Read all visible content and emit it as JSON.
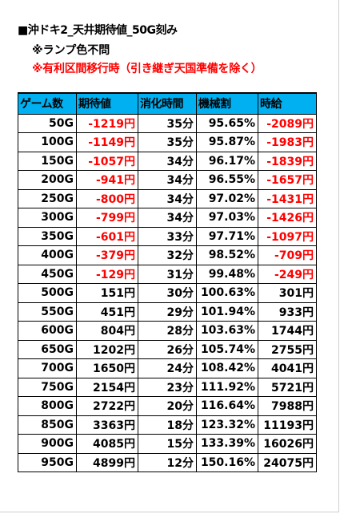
{
  "header": {
    "title": "■沖ドキ2_天井期待値_50G刻み",
    "note_lamp": "※ランプ色不問",
    "note_condition": "※有利区間移行時（引き継ぎ天国準備を除く）"
  },
  "colors": {
    "header_bg": "#00b0f0",
    "negative": "#ff0000",
    "text": "#000000"
  },
  "table": {
    "columns": [
      "ゲーム数",
      "期待値",
      "消化時間",
      "機械割",
      "時給"
    ],
    "rows": [
      [
        "50G",
        "-1219円",
        "35分",
        "95.65%",
        "-2089円"
      ],
      [
        "100G",
        "-1149円",
        "35分",
        "95.87%",
        "-1983円"
      ],
      [
        "150G",
        "-1057円",
        "34分",
        "96.17%",
        "-1839円"
      ],
      [
        "200G",
        "-941円",
        "34分",
        "96.55%",
        "-1657円"
      ],
      [
        "250G",
        "-800円",
        "34分",
        "97.02%",
        "-1431円"
      ],
      [
        "300G",
        "-799円",
        "34分",
        "97.03%",
        "-1426円"
      ],
      [
        "350G",
        "-601円",
        "33分",
        "97.71%",
        "-1097円"
      ],
      [
        "400G",
        "-379円",
        "32分",
        "98.52%",
        "-709円"
      ],
      [
        "450G",
        "-129円",
        "31分",
        "99.48%",
        "-249円"
      ],
      [
        "500G",
        "151円",
        "30分",
        "100.63%",
        "301円"
      ],
      [
        "550G",
        "451円",
        "29分",
        "101.94%",
        "933円"
      ],
      [
        "600G",
        "804円",
        "28分",
        "103.63%",
        "1744円"
      ],
      [
        "650G",
        "1202円",
        "26分",
        "105.74%",
        "2755円"
      ],
      [
        "700G",
        "1650円",
        "24分",
        "108.42%",
        "4041円"
      ],
      [
        "750G",
        "2154円",
        "23分",
        "111.92%",
        "5721円"
      ],
      [
        "800G",
        "2722円",
        "20分",
        "116.64%",
        "7988円"
      ],
      [
        "850G",
        "3363円",
        "18分",
        "123.32%",
        "11193円"
      ],
      [
        "900G",
        "4085円",
        "15分",
        "133.39%",
        "16026円"
      ],
      [
        "950G",
        "4899円",
        "12分",
        "150.16%",
        "24075円"
      ]
    ]
  }
}
